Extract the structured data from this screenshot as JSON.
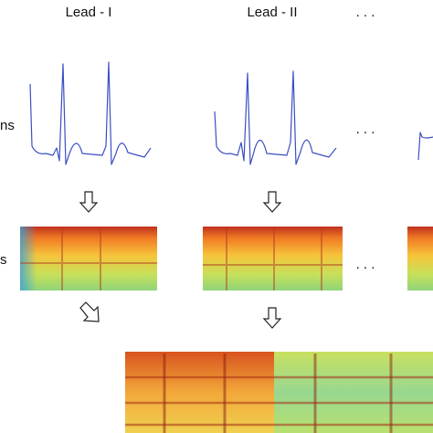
{
  "columns": [
    {
      "title": "Lead - I"
    },
    {
      "title": "Lead - II"
    }
  ],
  "ellipsis": [
    ". . .",
    ". . .",
    ". . ."
  ],
  "row_labels": [
    "ns",
    "s"
  ]
}
